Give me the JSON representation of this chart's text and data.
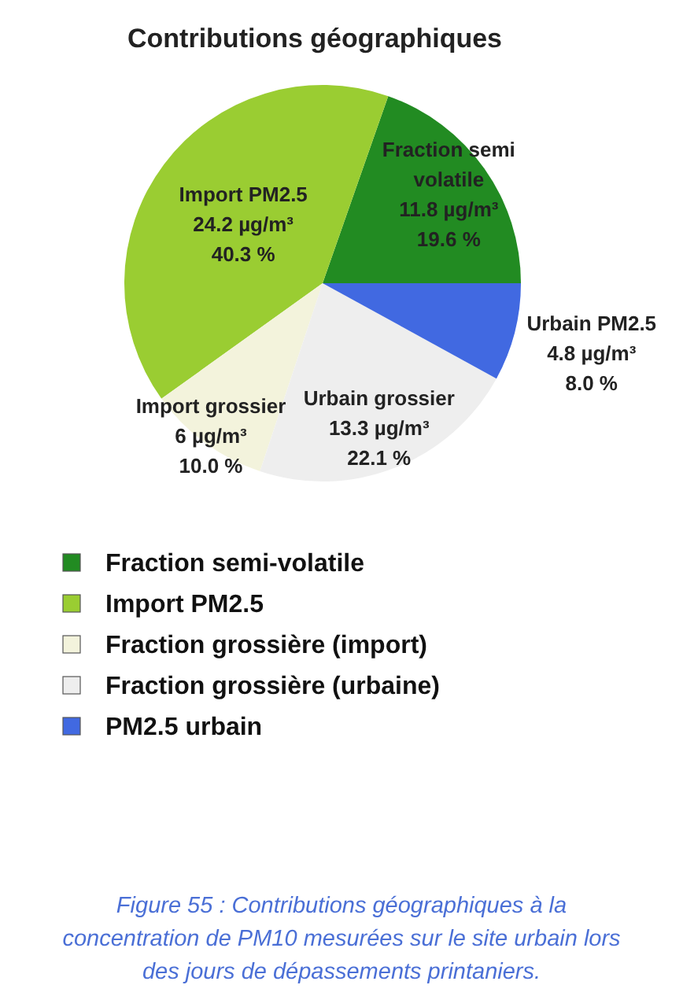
{
  "chart_data": {
    "type": "pie",
    "title": "Contributions géographiques",
    "categories": [
      "Fraction semi-volatile",
      "Import PM2.5",
      "Fraction grossière (import)",
      "Fraction grossière (urbaine)",
      "PM2.5 urbain"
    ],
    "values": [
      11.8,
      24.2,
      6,
      13.3,
      4.8
    ],
    "colors": [
      "#228b22",
      "#9acd32",
      "#f3f3dc",
      "#eeeeee",
      "#4169e1"
    ],
    "value_labels": [
      "Fraction semi\nvolatile\n11.8 µg/m³\n19.6 %",
      "Import PM2.5\n24.2 µg/m³\n40.3 %",
      "Import grossier\n6 µg/m³\n10.0 %",
      "Urbain grossier\n13.3 µg/m³\n22.1 %",
      "Urbain PM2.5\n4.8 µg/m³\n8.0 %"
    ],
    "legend": "bottom",
    "annotations": [
      "Figure 55 : Contributions géographiques à la concentration de PM10 mesurées sur le site urbain lors des jours de dépassements printaniers."
    ]
  }
}
